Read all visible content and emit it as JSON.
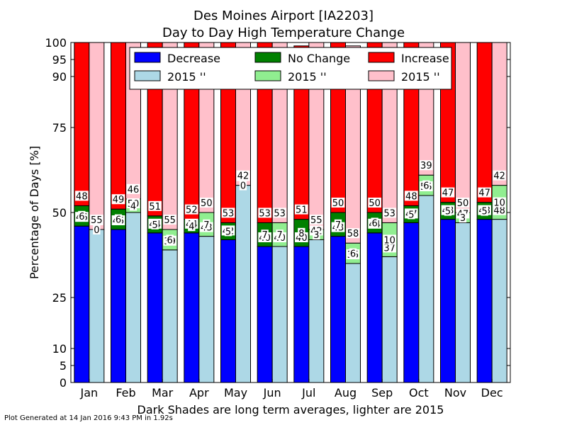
{
  "chart_data": {
    "type": "bar",
    "title": "Des Moines Airport [IA2203]",
    "subtitle": "Day to Day High Temperature Change",
    "xlabel": "Dark Shades are long term averages, lighter are 2015",
    "ylabel": "Percentage of Days [%]",
    "ylim": [
      0,
      100
    ],
    "yticks": [
      0,
      5,
      10,
      25,
      50,
      75,
      90,
      95,
      100
    ],
    "categories": [
      "Jan",
      "Feb",
      "Mar",
      "Apr",
      "May",
      "Jun",
      "Jul",
      "Aug",
      "Sep",
      "Oct",
      "Nov",
      "Dec"
    ],
    "stacked": true,
    "legend_position": "top",
    "series": [
      {
        "name": "Decrease",
        "group": "average",
        "color": "#0000ff",
        "values": [
          46,
          45,
          44,
          44,
          42,
          40,
          40,
          43,
          44,
          47,
          48,
          48
        ]
      },
      {
        "name": "No Change",
        "group": "average",
        "color": "#008000",
        "values": [
          6,
          6,
          5,
          4,
          5,
          7,
          8,
          7,
          6,
          5,
          5,
          5
        ]
      },
      {
        "name": "Increase",
        "group": "average",
        "color": "#ff0000",
        "values": [
          48,
          49,
          51,
          52,
          53,
          53,
          51,
          50,
          50,
          48,
          47,
          47
        ]
      },
      {
        "name": "2015 ''",
        "group": "2015",
        "color": "#add8e6",
        "values": [
          45,
          50,
          39,
          43,
          58,
          40,
          42,
          35,
          37,
          55,
          47,
          48
        ]
      },
      {
        "name": "2015 ''",
        "group": "2015",
        "color": "#90ee90",
        "values": [
          0,
          4,
          6,
          7,
          0,
          7,
          3,
          6,
          10,
          6,
          3,
          10
        ]
      },
      {
        "name": "2015 ''",
        "group": "2015",
        "color": "#ffc0cb",
        "values": [
          55,
          46,
          55,
          50,
          42,
          53,
          55,
          58,
          53,
          39,
          50,
          42
        ]
      }
    ]
  },
  "footer": "Plot Generated at 14 Jan 2016 9:43 PM in 1.92s"
}
